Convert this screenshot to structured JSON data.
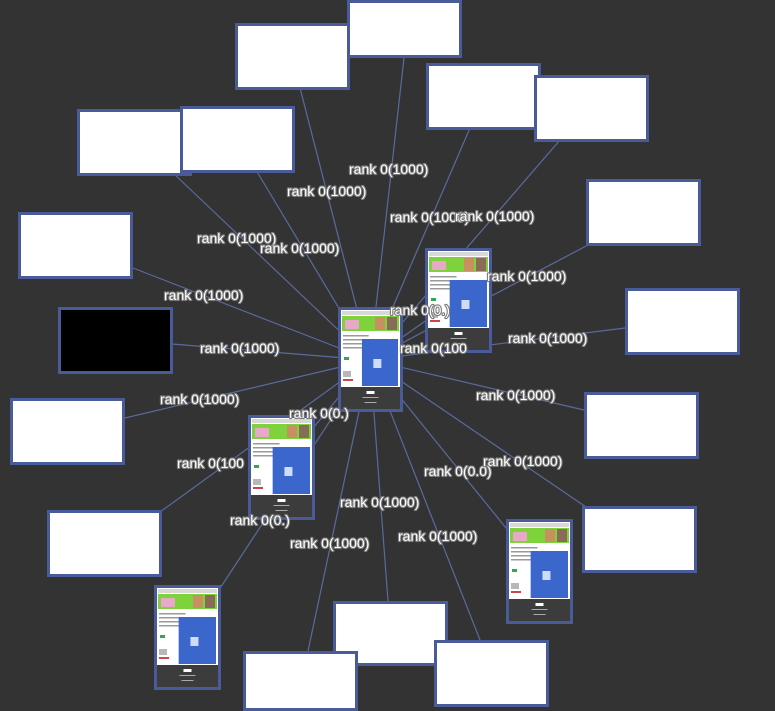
{
  "colors": {
    "background": "#333333",
    "edge": "#5a6a9e",
    "node_border": "#4a5b9a",
    "node_fill": "#ffffff",
    "dark_node_fill": "#000000",
    "page_banner_green": "#7ed23c",
    "page_banner_pink": "#e8a8c8",
    "page_blue": "#3b66cc",
    "page_footer": "#3c3c3c"
  },
  "labels": {
    "rank": "rank 0(1000)",
    "rank_zero": "rank 0(0.0)",
    "rank_zero_short": "rank 0(0.)",
    "rank_cut": "rank 0(100",
    "rank_partial": "rank 0(0.0)"
  },
  "thumbnails": {
    "footer_logo": "K",
    "note": "..."
  }
}
